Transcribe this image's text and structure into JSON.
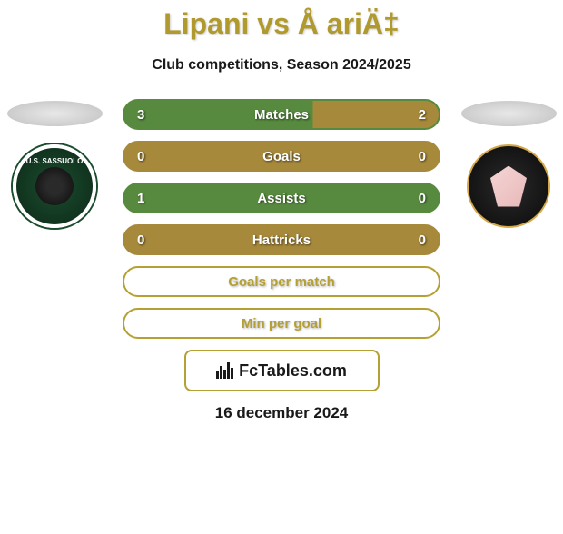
{
  "title": "Lipani vs Å ariÄ‡",
  "subtitle": "Club competitions, Season 2024/2025",
  "colors": {
    "accent": "#b09a2e",
    "accent_border": "#b5a033",
    "team_left": "#578a3e",
    "team_right": "#a7893b",
    "text_dark": "#1a1a1a",
    "text_light": "#ffffff",
    "background": "#ffffff"
  },
  "stats": {
    "rows": [
      {
        "label": "Matches",
        "left_value": "3",
        "right_value": "2",
        "left_color": "#578a3e",
        "right_color": "#a7893b",
        "split_percent": 60,
        "border_color": "#578a3e",
        "show_values": true
      },
      {
        "label": "Goals",
        "left_value": "0",
        "right_value": "0",
        "left_color": "#a7893b",
        "right_color": "#a7893b",
        "split_percent": 50,
        "border_color": "#a7893b",
        "show_values": true
      },
      {
        "label": "Assists",
        "left_value": "1",
        "right_value": "0",
        "left_color": "#578a3e",
        "right_color": "#a7893b",
        "split_percent": 100,
        "border_color": "#578a3e",
        "show_values": true
      },
      {
        "label": "Hattricks",
        "left_value": "0",
        "right_value": "0",
        "left_color": "#a7893b",
        "right_color": "#a7893b",
        "split_percent": 50,
        "border_color": "#a7893b",
        "show_values": true
      },
      {
        "label": "Goals per match",
        "left_value": "",
        "right_value": "",
        "left_color": "transparent",
        "right_color": "transparent",
        "split_percent": 50,
        "border_color": "#b5a033",
        "show_values": false
      },
      {
        "label": "Min per goal",
        "left_value": "",
        "right_value": "",
        "left_color": "transparent",
        "right_color": "transparent",
        "split_percent": 50,
        "border_color": "#b5a033",
        "show_values": false
      }
    ]
  },
  "left_club": {
    "name": "U.S. SASSUOLO",
    "badge_bg": "#1a4d2e"
  },
  "right_club": {
    "name": "Palermo",
    "badge_bg": "#0a0a0a"
  },
  "footer": {
    "site": "FcTables.com",
    "date": "16 december 2024"
  }
}
